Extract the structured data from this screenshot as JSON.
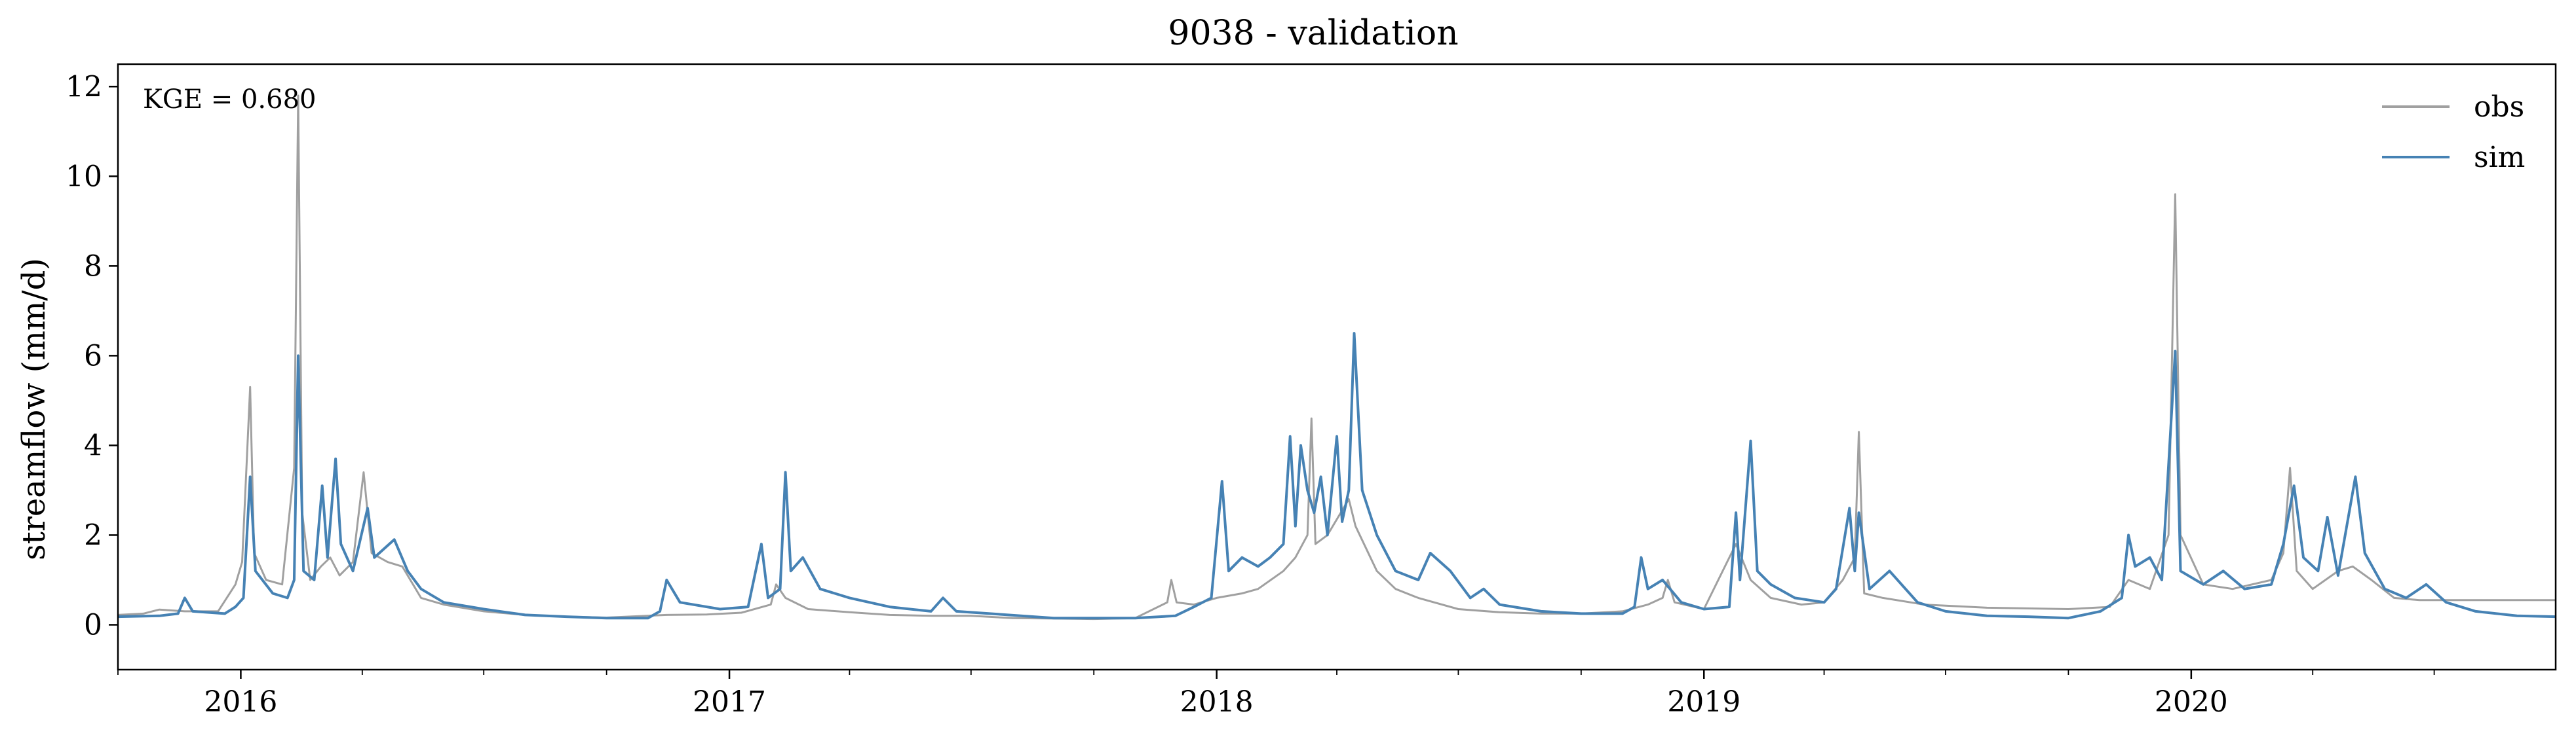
{
  "chart_data": {
    "type": "line",
    "title": "9038 - validation",
    "xlabel": "",
    "ylabel": "streamflow (mm/d)",
    "xlim": [
      "2015-10-01",
      "2020-09-30"
    ],
    "ylim": [
      -1,
      12.5
    ],
    "y_ticks": [
      0,
      2,
      4,
      6,
      8,
      10,
      12
    ],
    "x_tick_labels": [
      "2016",
      "2017",
      "2018",
      "2019",
      "2020"
    ],
    "x_tick_dates": [
      "2016-01-01",
      "2017-01-01",
      "2018-01-01",
      "2019-01-01",
      "2020-01-01"
    ],
    "grid": false,
    "legend_position": "top-right",
    "annotation": "KGE = 0.680",
    "series": [
      {
        "name": "obs",
        "color": "#a0a0a0",
        "points": [
          [
            "2015-10-01",
            0.22
          ],
          [
            "2015-10-20",
            0.25
          ],
          [
            "2015-11-01",
            0.34
          ],
          [
            "2015-11-20",
            0.3
          ],
          [
            "2015-12-15",
            0.3
          ],
          [
            "2015-12-28",
            0.9
          ],
          [
            "2016-01-02",
            1.4
          ],
          [
            "2016-01-08",
            5.3
          ],
          [
            "2016-01-11",
            1.6
          ],
          [
            "2016-01-20",
            1.0
          ],
          [
            "2016-02-01",
            0.9
          ],
          [
            "2016-02-10",
            3.5
          ],
          [
            "2016-02-13",
            11.8
          ],
          [
            "2016-02-16",
            2.5
          ],
          [
            "2016-02-22",
            1.0
          ],
          [
            "2016-03-01",
            1.3
          ],
          [
            "2016-03-08",
            1.5
          ],
          [
            "2016-03-15",
            1.1
          ],
          [
            "2016-03-25",
            1.4
          ],
          [
            "2016-04-02",
            3.4
          ],
          [
            "2016-04-08",
            1.6
          ],
          [
            "2016-04-20",
            1.4
          ],
          [
            "2016-05-01",
            1.3
          ],
          [
            "2016-05-15",
            0.6
          ],
          [
            "2016-06-01",
            0.45
          ],
          [
            "2016-07-01",
            0.3
          ],
          [
            "2016-08-01",
            0.22
          ],
          [
            "2016-09-01",
            0.18
          ],
          [
            "2016-10-01",
            0.16
          ],
          [
            "2016-11-15",
            0.22
          ],
          [
            "2016-12-15",
            0.23
          ],
          [
            "2017-01-10",
            0.27
          ],
          [
            "2017-02-01",
            0.45
          ],
          [
            "2017-02-05",
            0.9
          ],
          [
            "2017-02-12",
            0.6
          ],
          [
            "2017-03-01",
            0.35
          ],
          [
            "2017-04-01",
            0.28
          ],
          [
            "2017-05-01",
            0.22
          ],
          [
            "2017-06-01",
            0.2
          ],
          [
            "2017-07-01",
            0.2
          ],
          [
            "2017-08-01",
            0.15
          ],
          [
            "2017-09-01",
            0.14
          ],
          [
            "2017-10-01",
            0.13
          ],
          [
            "2017-11-01",
            0.15
          ],
          [
            "2017-11-25",
            0.5
          ],
          [
            "2017-11-28",
            1.0
          ],
          [
            "2017-12-02",
            0.5
          ],
          [
            "2017-12-15",
            0.45
          ],
          [
            "2018-01-01",
            0.6
          ],
          [
            "2018-01-20",
            0.7
          ],
          [
            "2018-02-01",
            0.8
          ],
          [
            "2018-02-20",
            1.2
          ],
          [
            "2018-03-01",
            1.5
          ],
          [
            "2018-03-10",
            2.0
          ],
          [
            "2018-03-13",
            4.6
          ],
          [
            "2018-03-16",
            1.8
          ],
          [
            "2018-03-25",
            2.0
          ],
          [
            "2018-04-02",
            2.4
          ],
          [
            "2018-04-10",
            2.8
          ],
          [
            "2018-04-15",
            2.2
          ],
          [
            "2018-05-01",
            1.2
          ],
          [
            "2018-05-15",
            0.8
          ],
          [
            "2018-06-01",
            0.6
          ],
          [
            "2018-07-01",
            0.35
          ],
          [
            "2018-08-01",
            0.28
          ],
          [
            "2018-09-01",
            0.25
          ],
          [
            "2018-10-01",
            0.25
          ],
          [
            "2018-11-01",
            0.3
          ],
          [
            "2018-11-20",
            0.45
          ],
          [
            "2018-12-01",
            0.6
          ],
          [
            "2018-12-05",
            1.0
          ],
          [
            "2018-12-10",
            0.5
          ],
          [
            "2019-01-01",
            0.35
          ],
          [
            "2019-01-25",
            1.8
          ],
          [
            "2019-02-05",
            1.0
          ],
          [
            "2019-02-20",
            0.6
          ],
          [
            "2019-03-15",
            0.45
          ],
          [
            "2019-04-01",
            0.5
          ],
          [
            "2019-04-15",
            1.0
          ],
          [
            "2019-04-24",
            1.5
          ],
          [
            "2019-04-27",
            4.3
          ],
          [
            "2019-05-01",
            0.7
          ],
          [
            "2019-05-15",
            0.6
          ],
          [
            "2019-06-15",
            0.45
          ],
          [
            "2019-08-01",
            0.38
          ],
          [
            "2019-10-01",
            0.35
          ],
          [
            "2019-11-01",
            0.4
          ],
          [
            "2019-11-15",
            1.0
          ],
          [
            "2019-12-01",
            0.8
          ],
          [
            "2019-12-15",
            2.0
          ],
          [
            "2019-12-20",
            9.6
          ],
          [
            "2019-12-24",
            2.0
          ],
          [
            "2020-01-10",
            0.9
          ],
          [
            "2020-02-01",
            0.8
          ],
          [
            "2020-03-01",
            1.0
          ],
          [
            "2020-03-10",
            1.6
          ],
          [
            "2020-03-15",
            3.5
          ],
          [
            "2020-03-20",
            1.2
          ],
          [
            "2020-04-01",
            0.8
          ],
          [
            "2020-04-20",
            1.2
          ],
          [
            "2020-05-01",
            1.3
          ],
          [
            "2020-05-15",
            1.0
          ],
          [
            "2020-06-01",
            0.6
          ],
          [
            "2020-06-20",
            0.55
          ],
          [
            "2020-09-30",
            0.55
          ]
        ]
      },
      {
        "name": "sim",
        "color": "#4682b4",
        "points": [
          [
            "2015-10-01",
            0.18
          ],
          [
            "2015-11-01",
            0.2
          ],
          [
            "2015-11-15",
            0.25
          ],
          [
            "2015-11-20",
            0.6
          ],
          [
            "2015-11-26",
            0.3
          ],
          [
            "2015-12-20",
            0.25
          ],
          [
            "2015-12-28",
            0.4
          ],
          [
            "2016-01-03",
            0.6
          ],
          [
            "2016-01-08",
            3.3
          ],
          [
            "2016-01-12",
            1.2
          ],
          [
            "2016-01-25",
            0.7
          ],
          [
            "2016-02-05",
            0.6
          ],
          [
            "2016-02-10",
            1.0
          ],
          [
            "2016-02-13",
            6.0
          ],
          [
            "2016-02-17",
            1.2
          ],
          [
            "2016-02-25",
            1.0
          ],
          [
            "2016-03-02",
            3.1
          ],
          [
            "2016-03-06",
            1.5
          ],
          [
            "2016-03-12",
            3.7
          ],
          [
            "2016-03-16",
            1.8
          ],
          [
            "2016-03-25",
            1.2
          ],
          [
            "2016-04-05",
            2.6
          ],
          [
            "2016-04-10",
            1.5
          ],
          [
            "2016-04-25",
            1.9
          ],
          [
            "2016-05-05",
            1.2
          ],
          [
            "2016-05-15",
            0.8
          ],
          [
            "2016-06-01",
            0.5
          ],
          [
            "2016-07-01",
            0.35
          ],
          [
            "2016-08-01",
            0.22
          ],
          [
            "2016-09-01",
            0.18
          ],
          [
            "2016-10-01",
            0.15
          ],
          [
            "2016-11-01",
            0.15
          ],
          [
            "2016-11-10",
            0.3
          ],
          [
            "2016-11-15",
            1.0
          ],
          [
            "2016-11-25",
            0.5
          ],
          [
            "2016-12-25",
            0.35
          ],
          [
            "2017-01-15",
            0.4
          ],
          [
            "2017-01-25",
            1.8
          ],
          [
            "2017-01-30",
            0.6
          ],
          [
            "2017-02-08",
            0.8
          ],
          [
            "2017-02-12",
            3.4
          ],
          [
            "2017-02-16",
            1.2
          ],
          [
            "2017-02-25",
            1.5
          ],
          [
            "2017-03-10",
            0.8
          ],
          [
            "2017-04-01",
            0.6
          ],
          [
            "2017-05-01",
            0.4
          ],
          [
            "2017-06-01",
            0.3
          ],
          [
            "2017-06-10",
            0.6
          ],
          [
            "2017-06-20",
            0.3
          ],
          [
            "2017-07-15",
            0.25
          ],
          [
            "2017-09-01",
            0.15
          ],
          [
            "2017-10-01",
            0.15
          ],
          [
            "2017-11-01",
            0.15
          ],
          [
            "2017-12-01",
            0.2
          ],
          [
            "2017-12-15",
            0.4
          ],
          [
            "2017-12-28",
            0.6
          ],
          [
            "2018-01-05",
            3.2
          ],
          [
            "2018-01-10",
            1.2
          ],
          [
            "2018-01-20",
            1.5
          ],
          [
            "2018-02-01",
            1.3
          ],
          [
            "2018-02-10",
            1.5
          ],
          [
            "2018-02-20",
            1.8
          ],
          [
            "2018-02-25",
            4.2
          ],
          [
            "2018-03-01",
            2.2
          ],
          [
            "2018-03-05",
            4.0
          ],
          [
            "2018-03-10",
            3.0
          ],
          [
            "2018-03-15",
            2.5
          ],
          [
            "2018-03-20",
            3.3
          ],
          [
            "2018-03-25",
            2.0
          ],
          [
            "2018-04-01",
            4.2
          ],
          [
            "2018-04-05",
            2.3
          ],
          [
            "2018-04-10",
            3.0
          ],
          [
            "2018-04-14",
            6.5
          ],
          [
            "2018-04-20",
            3.0
          ],
          [
            "2018-05-01",
            2.0
          ],
          [
            "2018-05-15",
            1.2
          ],
          [
            "2018-06-01",
            1.0
          ],
          [
            "2018-06-10",
            1.6
          ],
          [
            "2018-06-25",
            1.2
          ],
          [
            "2018-07-10",
            0.6
          ],
          [
            "2018-07-20",
            0.8
          ],
          [
            "2018-08-01",
            0.45
          ],
          [
            "2018-09-01",
            0.3
          ],
          [
            "2018-10-01",
            0.25
          ],
          [
            "2018-11-01",
            0.25
          ],
          [
            "2018-11-10",
            0.4
          ],
          [
            "2018-11-15",
            1.5
          ],
          [
            "2018-11-20",
            0.8
          ],
          [
            "2018-12-01",
            1.0
          ],
          [
            "2018-12-15",
            0.5
          ],
          [
            "2019-01-01",
            0.35
          ],
          [
            "2019-01-20",
            0.4
          ],
          [
            "2019-01-25",
            2.5
          ],
          [
            "2019-01-28",
            1.0
          ],
          [
            "2019-02-05",
            4.1
          ],
          [
            "2019-02-10",
            1.2
          ],
          [
            "2019-02-20",
            0.9
          ],
          [
            "2019-03-10",
            0.6
          ],
          [
            "2019-04-01",
            0.5
          ],
          [
            "2019-04-10",
            0.8
          ],
          [
            "2019-04-20",
            2.6
          ],
          [
            "2019-04-24",
            1.2
          ],
          [
            "2019-04-27",
            2.5
          ],
          [
            "2019-05-05",
            0.8
          ],
          [
            "2019-05-20",
            1.2
          ],
          [
            "2019-06-10",
            0.5
          ],
          [
            "2019-07-01",
            0.3
          ],
          [
            "2019-08-01",
            0.2
          ],
          [
            "2019-09-01",
            0.18
          ],
          [
            "2019-10-01",
            0.15
          ],
          [
            "2019-10-25",
            0.3
          ],
          [
            "2019-11-10",
            0.6
          ],
          [
            "2019-11-15",
            2.0
          ],
          [
            "2019-11-20",
            1.3
          ],
          [
            "2019-12-01",
            1.5
          ],
          [
            "2019-12-10",
            1.0
          ],
          [
            "2019-12-20",
            6.1
          ],
          [
            "2019-12-24",
            1.2
          ],
          [
            "2020-01-10",
            0.9
          ],
          [
            "2020-01-25",
            1.2
          ],
          [
            "2020-02-10",
            0.8
          ],
          [
            "2020-03-01",
            0.9
          ],
          [
            "2020-03-10",
            1.8
          ],
          [
            "2020-03-18",
            3.1
          ],
          [
            "2020-03-25",
            1.5
          ],
          [
            "2020-04-05",
            1.2
          ],
          [
            "2020-04-12",
            2.4
          ],
          [
            "2020-04-20",
            1.1
          ],
          [
            "2020-05-03",
            3.3
          ],
          [
            "2020-05-10",
            1.6
          ],
          [
            "2020-05-25",
            0.8
          ],
          [
            "2020-06-10",
            0.6
          ],
          [
            "2020-06-25",
            0.9
          ],
          [
            "2020-07-10",
            0.5
          ],
          [
            "2020-08-01",
            0.3
          ],
          [
            "2020-09-01",
            0.2
          ],
          [
            "2020-09-30",
            0.18
          ]
        ]
      }
    ]
  }
}
